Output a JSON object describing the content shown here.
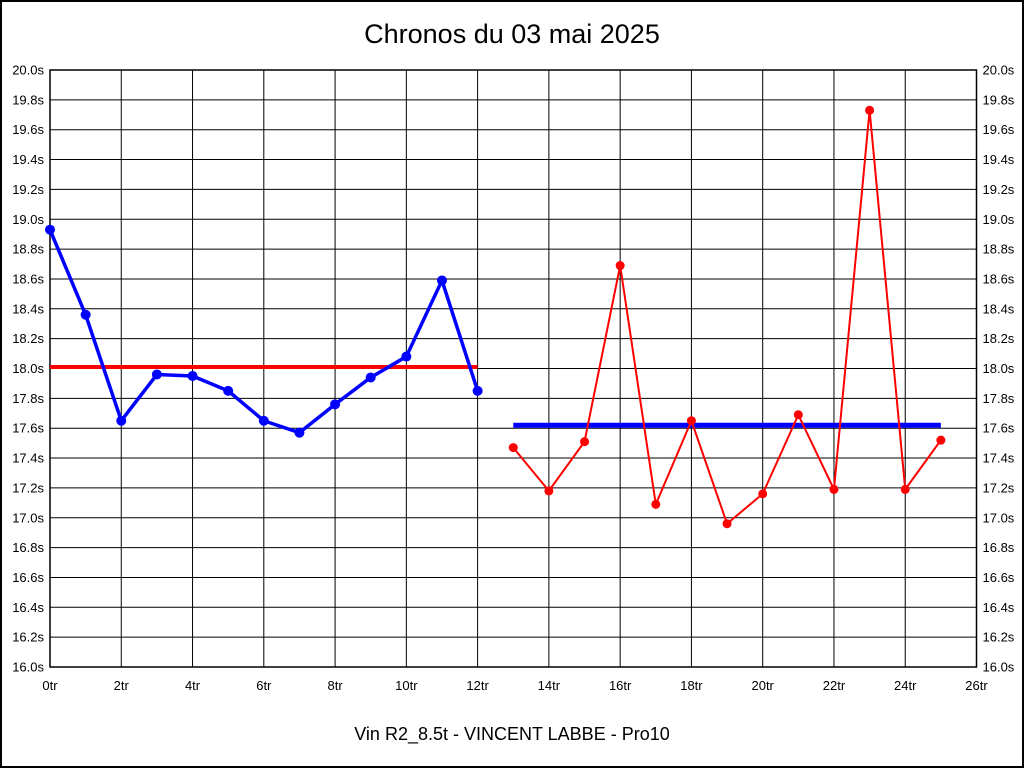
{
  "title": "Chronos du 03 mai 2025",
  "subtitle": "Vin R2_8.5t - VINCENT LABBE - Pro10",
  "chart_data": {
    "type": "line",
    "title": "Chronos du 03 mai 2025",
    "subtitle": "Vin R2_8.5t - VINCENT LABBE - Pro10",
    "x_unit": "tr",
    "y_unit": "s",
    "xlim": [
      0,
      26
    ],
    "ylim": [
      16.0,
      20.0
    ],
    "grid": true,
    "legend": "none",
    "background_color": "#ffffff",
    "grid_color": "#000000",
    "x_ticks": [
      {
        "value": 0,
        "label": "0tr"
      },
      {
        "value": 2,
        "label": "2tr"
      },
      {
        "value": 4,
        "label": "4tr"
      },
      {
        "value": 6,
        "label": "6tr"
      },
      {
        "value": 8,
        "label": "8tr"
      },
      {
        "value": 10,
        "label": "10tr"
      },
      {
        "value": 12,
        "label": "12tr"
      },
      {
        "value": 14,
        "label": "14tr"
      },
      {
        "value": 16,
        "label": "16tr"
      },
      {
        "value": 18,
        "label": "18tr"
      },
      {
        "value": 20,
        "label": "20tr"
      },
      {
        "value": 22,
        "label": "22tr"
      },
      {
        "value": 24,
        "label": "24tr"
      },
      {
        "value": 26,
        "label": "26tr"
      }
    ],
    "y_ticks": [
      {
        "value": 20.0,
        "label": "20.0s"
      },
      {
        "value": 19.8,
        "label": "19.8s"
      },
      {
        "value": 19.6,
        "label": "19.6s"
      },
      {
        "value": 19.4,
        "label": "19.4s"
      },
      {
        "value": 19.2,
        "label": "19.2s"
      },
      {
        "value": 19.0,
        "label": "19.0s"
      },
      {
        "value": 18.8,
        "label": "18.8s"
      },
      {
        "value": 18.6,
        "label": "18.6s"
      },
      {
        "value": 18.4,
        "label": "18.4s"
      },
      {
        "value": 18.2,
        "label": "18.2s"
      },
      {
        "value": 18.0,
        "label": "18.0s"
      },
      {
        "value": 17.8,
        "label": "17.8s"
      },
      {
        "value": 17.6,
        "label": "17.6s"
      },
      {
        "value": 17.4,
        "label": "17.4s"
      },
      {
        "value": 17.2,
        "label": "17.2s"
      },
      {
        "value": 17.0,
        "label": "17.0s"
      },
      {
        "value": 16.8,
        "label": "16.8s"
      },
      {
        "value": 16.6,
        "label": "16.6s"
      },
      {
        "value": 16.4,
        "label": "16.4s"
      },
      {
        "value": 16.2,
        "label": "16.2s"
      },
      {
        "value": 16.0,
        "label": "16.0s"
      }
    ],
    "series": [
      {
        "name": "chronos-serie-bleue",
        "color": "#0000ff",
        "line_width": 3.5,
        "marker": "circle",
        "marker_radius": 5,
        "x": [
          0,
          1,
          2,
          3,
          4,
          5,
          6,
          7,
          8,
          9,
          10,
          11,
          12
        ],
        "values": [
          18.93,
          18.36,
          17.65,
          17.96,
          17.95,
          17.85,
          17.65,
          17.57,
          17.76,
          17.94,
          18.08,
          18.59,
          17.85
        ]
      },
      {
        "name": "chronos-serie-rouge",
        "color": "#ff0000",
        "line_width": 2,
        "marker": "circle",
        "marker_radius": 4.5,
        "x": [
          13,
          14,
          15,
          16,
          17,
          18,
          19,
          20,
          21,
          22,
          23,
          24,
          25
        ],
        "values": [
          17.47,
          17.18,
          17.51,
          18.69,
          17.09,
          17.65,
          16.96,
          17.16,
          17.69,
          17.19,
          19.73,
          17.19,
          17.52
        ]
      }
    ],
    "reference_lines": [
      {
        "name": "moyenne-serie-bleue",
        "color": "#ff0000",
        "value": 18.01,
        "x_start": 0,
        "x_end": 12,
        "line_width": 4
      },
      {
        "name": "moyenne-serie-rouge",
        "color": "#0000ff",
        "value": 17.62,
        "x_start": 13,
        "x_end": 25,
        "line_width": 5
      }
    ]
  }
}
